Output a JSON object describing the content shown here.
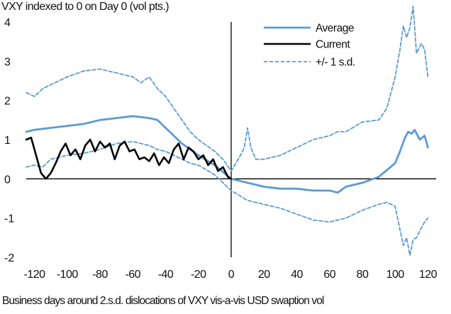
{
  "chart_data": {
    "type": "line",
    "title": "VXY indexed to 0 on Day 0 (vol pts.)",
    "xlabel": "Business days around 2.s.d. dislocations of VXY vis-a-vis USD swaption vol",
    "ylabel": "",
    "xlim": [
      -125,
      125
    ],
    "ylim": [
      -2,
      4
    ],
    "x_ticks": [
      -120,
      -100,
      -80,
      -60,
      -40,
      -20,
      0,
      20,
      40,
      60,
      80,
      100,
      120
    ],
    "y_ticks": [
      -2,
      -1,
      0,
      1,
      2,
      3,
      4
    ],
    "x_tick_labels": [
      "-120",
      "-100",
      "-80",
      "-60",
      "-40",
      "-20",
      "0",
      "20",
      "40",
      "60",
      "80",
      "100",
      "120"
    ],
    "y_tick_labels": [
      "-2",
      "-1",
      "0",
      "1",
      "2",
      "3",
      "4"
    ],
    "legend": {
      "position": "top-right"
    },
    "series": [
      {
        "name": "Average",
        "color": "#5b9bd5",
        "style": "solid",
        "x": [
          -125,
          -120,
          -110,
          -100,
          -90,
          -80,
          -70,
          -60,
          -50,
          -45,
          -40,
          -35,
          -30,
          -20,
          -10,
          0,
          10,
          20,
          30,
          40,
          50,
          60,
          65,
          70,
          80,
          90,
          100,
          103,
          106,
          108,
          110,
          112,
          115,
          118,
          120
        ],
        "y": [
          1.2,
          1.25,
          1.3,
          1.35,
          1.4,
          1.5,
          1.55,
          1.6,
          1.55,
          1.5,
          1.3,
          1.1,
          0.9,
          0.6,
          0.35,
          0.0,
          -0.1,
          -0.2,
          -0.25,
          -0.25,
          -0.3,
          -0.3,
          -0.35,
          -0.2,
          -0.1,
          0.05,
          0.4,
          0.7,
          1.05,
          1.2,
          1.15,
          1.25,
          1.0,
          1.1,
          0.8
        ]
      },
      {
        "name": "Current",
        "color": "#000000",
        "style": "solid",
        "x": [
          -125,
          -122,
          -119,
          -116,
          -113,
          -110,
          -107,
          -104,
          -101,
          -98,
          -95,
          -92,
          -89,
          -86,
          -83,
          -80,
          -77,
          -74,
          -71,
          -68,
          -65,
          -62,
          -59,
          -56,
          -53,
          -50,
          -47,
          -44,
          -41,
          -38,
          -35,
          -32,
          -29,
          -26,
          -23,
          -20,
          -17,
          -14,
          -11,
          -8,
          -5,
          -2,
          0
        ],
        "y": [
          1.0,
          1.05,
          0.6,
          0.15,
          0.0,
          0.15,
          0.4,
          0.7,
          0.9,
          0.6,
          0.75,
          0.5,
          0.85,
          1.0,
          0.7,
          0.95,
          0.8,
          0.9,
          0.5,
          0.85,
          0.95,
          0.7,
          0.75,
          0.5,
          0.55,
          0.45,
          0.65,
          0.35,
          0.55,
          0.4,
          0.75,
          0.9,
          0.5,
          0.8,
          0.7,
          0.5,
          0.6,
          0.35,
          0.5,
          0.2,
          0.3,
          0.05,
          0.0
        ]
      },
      {
        "name": "+/- 1 s.d.",
        "color": "#5b9bd5",
        "style": "dashed",
        "x": [
          -125,
          -120,
          -115,
          -110,
          -100,
          -90,
          -80,
          -75,
          -70,
          -60,
          -55,
          -50,
          -45,
          -40,
          -35,
          -30,
          -25,
          -20,
          -10,
          -5,
          0,
          5,
          8,
          10,
          12,
          15,
          20,
          30,
          40,
          50,
          60,
          65,
          70,
          80,
          90,
          95,
          100,
          103,
          105,
          107,
          109,
          111,
          113,
          116,
          118,
          120
        ],
        "y": [
          2.2,
          2.1,
          2.3,
          2.4,
          2.6,
          2.75,
          2.8,
          2.75,
          2.7,
          2.6,
          2.45,
          2.6,
          2.3,
          2.1,
          1.8,
          1.5,
          1.2,
          1.0,
          0.7,
          0.5,
          0.2,
          0.55,
          0.8,
          1.3,
          0.8,
          0.5,
          0.5,
          0.6,
          0.8,
          1.0,
          1.1,
          1.2,
          1.2,
          1.45,
          1.5,
          1.8,
          2.6,
          3.3,
          3.9,
          3.6,
          3.85,
          4.4,
          3.2,
          3.45,
          3.3,
          2.6
        ]
      },
      {
        "name": "+/- 1 s.d. (lower)",
        "color": "#5b9bd5",
        "style": "dashed",
        "x": [
          -125,
          -120,
          -115,
          -110,
          -100,
          -90,
          -80,
          -70,
          -60,
          -50,
          -45,
          -40,
          -35,
          -30,
          -25,
          -20,
          -10,
          0,
          10,
          20,
          30,
          40,
          50,
          60,
          70,
          80,
          90,
          95,
          100,
          103,
          105,
          107,
          109,
          111,
          113,
          116,
          118,
          120
        ],
        "y": [
          0.3,
          0.35,
          0.3,
          0.5,
          0.6,
          0.65,
          0.75,
          0.9,
          0.95,
          0.85,
          0.75,
          0.7,
          0.6,
          0.5,
          0.4,
          0.35,
          0.1,
          -0.3,
          -0.55,
          -0.65,
          -0.75,
          -0.9,
          -1.05,
          -1.1,
          -1.0,
          -0.8,
          -0.65,
          -0.6,
          -0.7,
          -1.3,
          -1.7,
          -1.5,
          -1.95,
          -1.55,
          -1.5,
          -1.25,
          -1.1,
          -1.0
        ]
      }
    ]
  }
}
